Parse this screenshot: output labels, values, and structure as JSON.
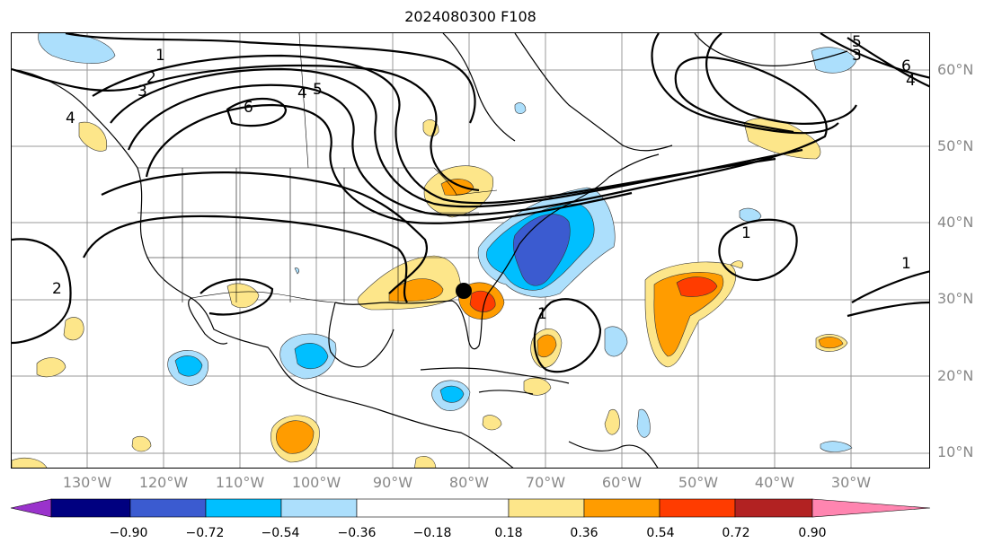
{
  "title": "2024080300 F108",
  "lat_labels": [
    "60°N",
    "50°N",
    "40°N",
    "30°N",
    "20°N",
    "10°N"
  ],
  "lon_labels": [
    "130°W",
    "120°W",
    "110°W",
    "100°W",
    "90°W",
    "80°W",
    "70°W",
    "60°W",
    "50°W",
    "40°W",
    "30°W"
  ],
  "colorbar": {
    "ticks": [
      "−0.90",
      "−0.72",
      "−0.54",
      "−0.36",
      "−0.18",
      "0.18",
      "0.36",
      "0.54",
      "0.72",
      "0.90"
    ],
    "colors": {
      "extend_low": "#9a33cc",
      "b1": "#000080",
      "b2": "#3b5bd0",
      "b3": "#00bfff",
      "b4": "#acdffc",
      "b5": "#ffffff",
      "b6": "#fde68a",
      "b7": "#ff9c00",
      "b8": "#ff3c00",
      "b9": "#b22222",
      "extend_high": "#ff85b0"
    }
  },
  "contour_labels": [
    "1",
    "2",
    "3",
    "6",
    "5",
    "4",
    "6",
    "5",
    "4",
    "3",
    "4",
    "2",
    "1",
    "1",
    "1"
  ],
  "storm_marker": "storm-center"
}
